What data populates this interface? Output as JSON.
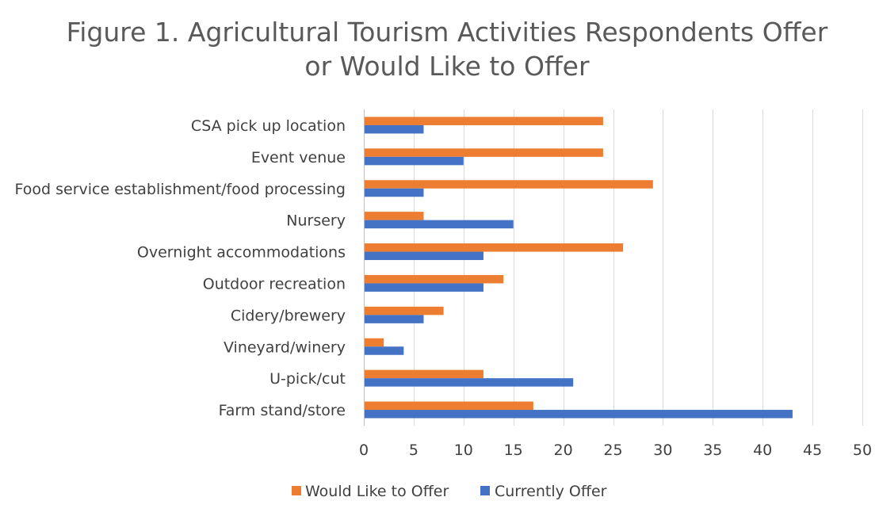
{
  "chart_data": {
    "type": "bar",
    "orientation": "horizontal",
    "title": "Figure 1. Agricultural Tourism Activities Respondents Offer or Would Like to Offer",
    "title_lines": [
      "Figure 1. Agricultural Tourism Activities Respondents Offer",
      "or Would Like to Offer"
    ],
    "categories": [
      "CSA pick up location",
      "Event venue",
      "Food service establishment/food processing",
      "Nursery",
      "Overnight accommodations",
      "Outdoor recreation",
      "Cidery/brewery",
      "Vineyard/winery",
      "U-pick/cut",
      "Farm stand/store"
    ],
    "series": [
      {
        "name": "Would Like to Offer",
        "color": "#ED7D31",
        "values": [
          24,
          24,
          29,
          6,
          26,
          14,
          8,
          2,
          12,
          17
        ]
      },
      {
        "name": "Currently Offer",
        "color": "#4472C4",
        "values": [
          6,
          10,
          6,
          15,
          12,
          12,
          6,
          4,
          21,
          43
        ]
      }
    ],
    "xlabel": "",
    "ylabel": "",
    "xlim": [
      0,
      50
    ],
    "xticks": [
      0,
      5,
      10,
      15,
      20,
      25,
      30,
      35,
      40,
      45,
      50
    ],
    "grid": "vertical",
    "legend": "bottom"
  }
}
